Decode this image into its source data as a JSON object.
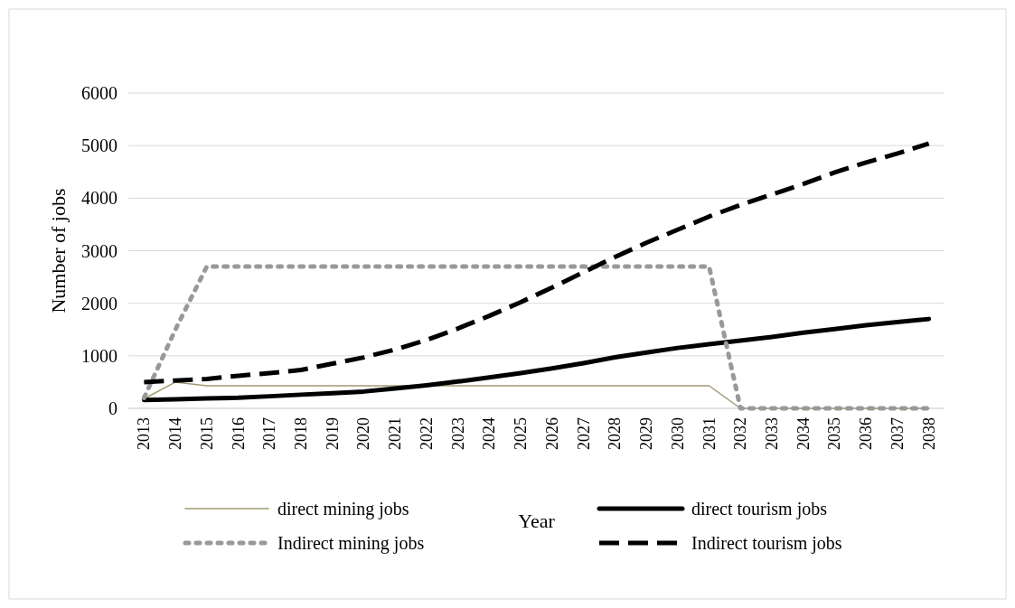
{
  "chart_data": {
    "type": "line",
    "xlabel": "Year",
    "ylabel": "Number of jobs",
    "categories": [
      "2013",
      "2014",
      "2015",
      "2016",
      "2017",
      "2018",
      "2019",
      "2020",
      "2021",
      "2022",
      "2023",
      "2024",
      "2025",
      "2026",
      "2027",
      "2028",
      "2029",
      "2030",
      "2031",
      "2032",
      "2033",
      "2034",
      "2035",
      "2036",
      "2037",
      "2038"
    ],
    "ylim": [
      0,
      6000
    ],
    "yticks": [
      0,
      1000,
      2000,
      3000,
      4000,
      5000,
      6000
    ],
    "grid": "y",
    "legend": "bottom",
    "marker": "none",
    "series": [
      {
        "name": "direct mining jobs",
        "color": "#a09a70",
        "line_style": "solid",
        "values": [
          180,
          500,
          430,
          430,
          430,
          430,
          430,
          430,
          430,
          430,
          430,
          430,
          430,
          430,
          430,
          430,
          430,
          430,
          430,
          0,
          0,
          0,
          0,
          0,
          0,
          0
        ]
      },
      {
        "name": "direct tourism jobs",
        "color": "#000000",
        "line_style": "solid",
        "values": [
          160,
          170,
          190,
          200,
          230,
          260,
          290,
          320,
          380,
          440,
          510,
          590,
          670,
          760,
          860,
          970,
          1060,
          1150,
          1220,
          1290,
          1360,
          1440,
          1510,
          1580,
          1640,
          1700
        ]
      },
      {
        "name": "Indirect mining jobs",
        "color": "#999999",
        "line_style": "dotted",
        "values": [
          200,
          1500,
          2700,
          2700,
          2700,
          2700,
          2700,
          2700,
          2700,
          2700,
          2700,
          2700,
          2700,
          2700,
          2700,
          2700,
          2700,
          2700,
          2700,
          0,
          0,
          0,
          0,
          0,
          0,
          0
        ]
      },
      {
        "name": "Indirect tourism jobs",
        "color": "#000000",
        "line_style": "dashed",
        "values": [
          500,
          530,
          560,
          620,
          670,
          730,
          850,
          970,
          1120,
          1300,
          1520,
          1760,
          2020,
          2300,
          2590,
          2880,
          3150,
          3400,
          3650,
          3870,
          4070,
          4270,
          4490,
          4680,
          4850,
          5040
        ]
      }
    ]
  }
}
